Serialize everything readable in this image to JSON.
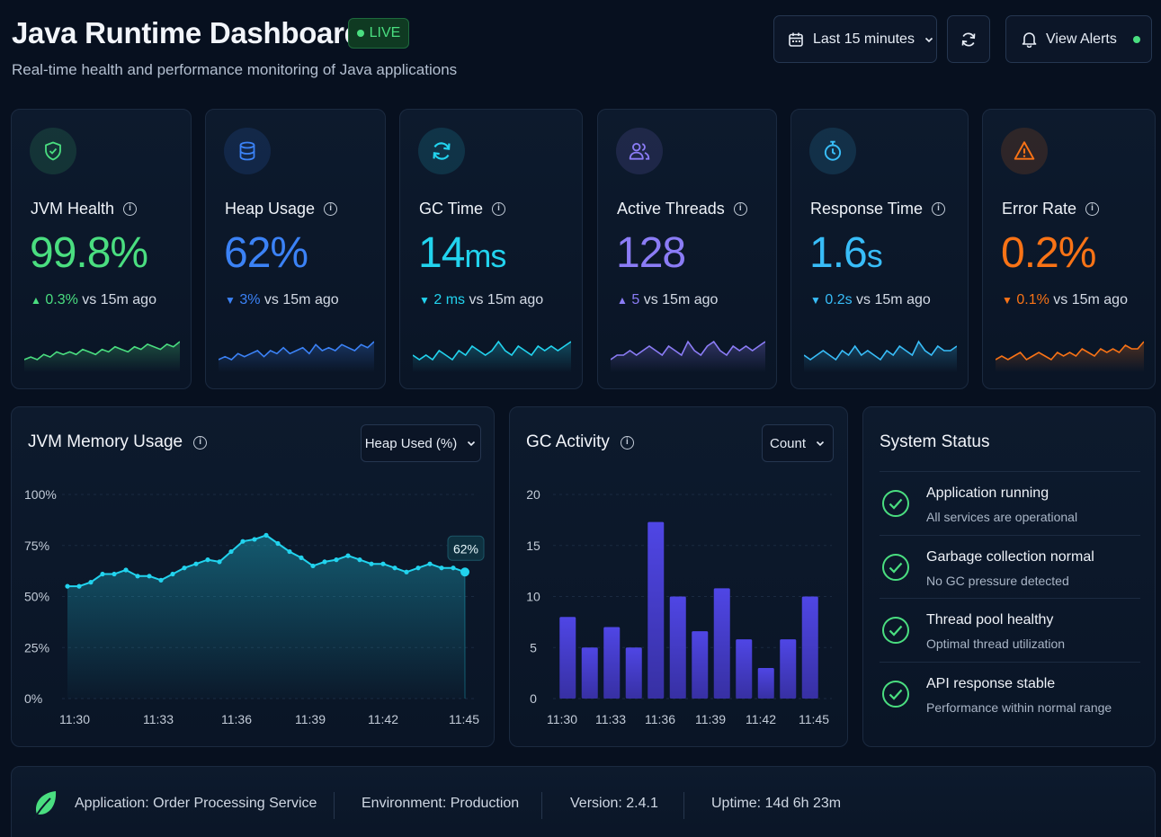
{
  "header": {
    "title": "Java Runtime Dashboard",
    "live_label": "LIVE",
    "subtitle": "Real-time health and performance monitoring of Java applications",
    "time_range_label": "Last 15 minutes",
    "alerts_label": "View Alerts"
  },
  "colors": {
    "green": "#4ade80",
    "blue": "#3b82f6",
    "cyan": "#22d3ee",
    "purple": "#8b7cf6",
    "sky": "#38bdf8",
    "orange": "#f97316",
    "indigo_bar": "#4f46e5"
  },
  "metrics": [
    {
      "label": "JVM Health",
      "value": "99.8%",
      "unit": "",
      "delta_arrow": "▲",
      "delta": "0.3%",
      "delta_suffix": "vs 15m ago",
      "color": "#4ade80",
      "icon": "shield-icon",
      "spark": [
        3,
        4,
        3,
        5,
        4,
        6,
        5,
        6,
        5,
        7,
        6,
        5,
        7,
        6,
        8,
        7,
        6,
        8,
        7,
        9,
        8,
        7,
        9,
        8,
        10
      ]
    },
    {
      "label": "Heap Usage",
      "value": "62%",
      "unit": "",
      "delta_arrow": "▼",
      "delta": "3%",
      "delta_suffix": "vs 15m ago",
      "color": "#3b82f6",
      "icon": "database-icon",
      "spark": [
        3,
        4,
        3,
        5,
        4,
        5,
        6,
        4,
        6,
        5,
        7,
        5,
        6,
        7,
        5,
        8,
        6,
        7,
        6,
        8,
        7,
        6,
        8,
        7,
        9
      ]
    },
    {
      "label": "GC Time",
      "value": "14",
      "unit": "ms",
      "delta_arrow": "▼",
      "delta": "2 ms",
      "delta_suffix": "vs 15m ago",
      "color": "#22d3ee",
      "icon": "refresh-icon",
      "spark": [
        5,
        4,
        5,
        4,
        6,
        5,
        4,
        6,
        5,
        7,
        6,
        5,
        6,
        8,
        6,
        5,
        7,
        6,
        5,
        7,
        6,
        7,
        6,
        7,
        8
      ]
    },
    {
      "label": "Active Threads",
      "value": "128",
      "unit": "",
      "delta_arrow": "▲",
      "delta": "5",
      "delta_suffix": "vs 15m ago",
      "color": "#8b7cf6",
      "icon": "users-icon",
      "spark": [
        4,
        5,
        5,
        6,
        5,
        6,
        7,
        6,
        5,
        7,
        6,
        5,
        8,
        6,
        5,
        7,
        8,
        6,
        5,
        7,
        6,
        7,
        6,
        7,
        8
      ]
    },
    {
      "label": "Response Time",
      "value": "1.6",
      "unit": "s",
      "delta_arrow": "▼",
      "delta": "0.2s",
      "delta_suffix": "vs 15m ago",
      "color": "#38bdf8",
      "icon": "timer-icon",
      "spark": [
        4,
        3,
        4,
        5,
        4,
        3,
        5,
        4,
        6,
        4,
        5,
        4,
        3,
        5,
        4,
        6,
        5,
        4,
        7,
        5,
        4,
        6,
        5,
        5,
        6
      ]
    },
    {
      "label": "Error Rate",
      "value": "0.2%",
      "unit": "",
      "delta_arrow": "▼",
      "delta": "0.1%",
      "delta_suffix": "vs 15m ago",
      "color": "#f97316",
      "icon": "warning-icon",
      "spark": [
        3,
        4,
        3,
        4,
        5,
        3,
        4,
        5,
        4,
        3,
        5,
        4,
        5,
        4,
        6,
        5,
        4,
        6,
        5,
        6,
        5,
        7,
        6,
        6,
        8
      ]
    }
  ],
  "memory_panel": {
    "title": "JVM Memory Usage",
    "select_label": "Heap Used (%)",
    "current_label": "62%"
  },
  "gc_panel": {
    "title": "GC Activity",
    "select_label": "Count"
  },
  "chart_data": [
    {
      "type": "area",
      "x": [
        "11:30",
        "11:30",
        "11:31",
        "11:31",
        "11:32",
        "11:32",
        "11:33",
        "11:33",
        "11:33",
        "11:34",
        "11:34",
        "11:35",
        "11:35",
        "11:35",
        "11:36",
        "11:36",
        "11:37",
        "11:37",
        "11:38",
        "11:38",
        "11:38",
        "11:39",
        "11:39",
        "11:40",
        "11:40",
        "11:40",
        "11:41",
        "11:41",
        "11:42",
        "11:42",
        "11:43",
        "11:43",
        "11:44",
        "11:44",
        "11:45"
      ],
      "y": [
        55,
        55,
        57,
        61,
        61,
        63,
        60,
        60,
        58,
        61,
        64,
        66,
        68,
        67,
        72,
        77,
        78,
        80,
        76,
        72,
        69,
        65,
        67,
        68,
        70,
        68,
        66,
        66,
        64,
        62,
        64,
        66,
        64,
        64,
        62
      ],
      "xticks": [
        "11:30",
        "11:33",
        "11:36",
        "11:39",
        "11:42",
        "11:45"
      ],
      "yticks": [
        "0%",
        "25%",
        "50%",
        "75%",
        "100%"
      ],
      "ylim": [
        0,
        100
      ]
    },
    {
      "type": "bar",
      "values": [
        8,
        5,
        7,
        5,
        17.3,
        10,
        6.6,
        10.8,
        5.8,
        3,
        5.8,
        10
      ],
      "xticks": [
        "11:30",
        "11:33",
        "11:36",
        "11:39",
        "11:42",
        "11:45"
      ],
      "yticks": [
        "0",
        "5",
        "10",
        "15",
        "20"
      ],
      "ylim": [
        0,
        20
      ]
    }
  ],
  "system_status": {
    "title": "System Status",
    "items": [
      {
        "title": "Application running",
        "subtitle": "All services are operational"
      },
      {
        "title": "Garbage collection normal",
        "subtitle": "No GC pressure detected"
      },
      {
        "title": "Thread pool healthy",
        "subtitle": "Optimal thread utilization"
      },
      {
        "title": "API response stable",
        "subtitle": "Performance within normal range"
      }
    ]
  },
  "footer": {
    "application": "Application: Order Processing Service",
    "environment": "Environment: Production",
    "version": "Version: 2.4.1",
    "uptime": "Uptime: 14d 6h 23m"
  }
}
